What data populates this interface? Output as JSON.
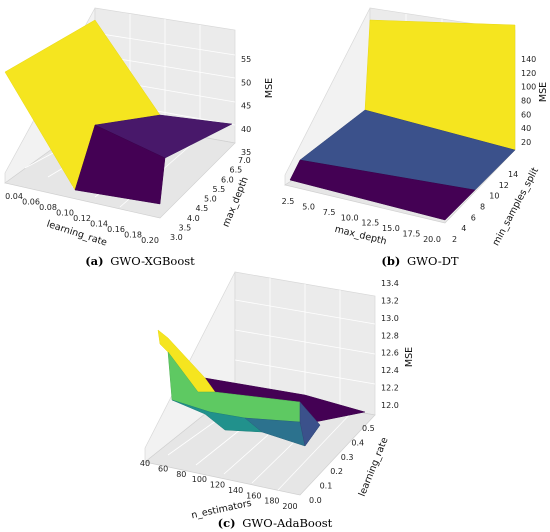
{
  "figure": {
    "chart_data": [
      {
        "type": "surface3d",
        "caption_letter": "(a)",
        "caption_text": "GWO-XGBoost",
        "x_axis": {
          "label": "learning_rate",
          "ticks": [
            "0.04",
            "0.06",
            "0.08",
            "0.10",
            "0.12",
            "0.14",
            "0.16",
            "0.18",
            "0.20"
          ],
          "range": [
            0.04,
            0.2
          ]
        },
        "y_axis": {
          "label": "max_depth",
          "ticks": [
            "3.0",
            "3.5",
            "4.0",
            "4.5",
            "5.0",
            "5.5",
            "6.0",
            "6.5",
            "7.0"
          ],
          "range": [
            3.0,
            7.0
          ]
        },
        "z_axis": {
          "label": "MSE",
          "ticks": [
            "35",
            "40",
            "45",
            "50",
            "55"
          ],
          "range": [
            35,
            57
          ]
        },
        "surface": [
          {
            "x": 0.04,
            "y": 3.0,
            "z": 57
          },
          {
            "x": 0.04,
            "y": 7.0,
            "z": 57
          },
          {
            "x": 0.1,
            "y": 3.0,
            "z": 35
          },
          {
            "x": 0.1,
            "y": 7.0,
            "z": 41
          },
          {
            "x": 0.2,
            "y": 3.0,
            "z": 35
          },
          {
            "x": 0.2,
            "y": 7.0,
            "z": 41
          }
        ],
        "colormap": "viridis",
        "colors": {
          "high": "#f5e51f",
          "low": "#48186a",
          "lowest": "#440154"
        }
      },
      {
        "type": "surface3d",
        "caption_letter": "(b)",
        "caption_text": "GWO-DT",
        "x_axis": {
          "label": "max_depth",
          "ticks": [
            "2.5",
            "5.0",
            "7.5",
            "10.0",
            "12.5",
            "15.0",
            "17.5",
            "20.0"
          ],
          "range": [
            2,
            20
          ]
        },
        "y_axis": {
          "label": "min_samples_split",
          "ticks": [
            "2",
            "4",
            "6",
            "8",
            "10",
            "12",
            "14"
          ],
          "range": [
            2,
            14
          ]
        },
        "z_axis": {
          "label": "MSE",
          "ticks": [
            "20",
            "40",
            "60",
            "80",
            "100",
            "120",
            "140"
          ],
          "range": [
            20,
            150
          ]
        },
        "surface": [
          {
            "x": 2,
            "y": 2,
            "z": 20
          },
          {
            "x": 20,
            "y": 2,
            "z": 20
          },
          {
            "x": 2,
            "y": 5,
            "z": 30
          },
          {
            "x": 20,
            "y": 5,
            "z": 30
          },
          {
            "x": 2,
            "y": 8,
            "z": 75
          },
          {
            "x": 20,
            "y": 8,
            "z": 75
          },
          {
            "x": 2,
            "y": 14,
            "z": 150
          },
          {
            "x": 20,
            "y": 14,
            "z": 150
          }
        ],
        "colormap": "viridis",
        "colors": {
          "high": "#f5e51f",
          "mid": "#3b518b",
          "low": "#440154"
        }
      },
      {
        "type": "surface3d",
        "caption_letter": "(c)",
        "caption_text": "GWO-AdaBoost",
        "x_axis": {
          "label": "n_estimators",
          "ticks": [
            "40",
            "60",
            "80",
            "100",
            "120",
            "140",
            "160",
            "180",
            "200"
          ],
          "range": [
            40,
            200
          ]
        },
        "y_axis": {
          "label": "learning_rate",
          "ticks": [
            "0.0",
            "0.1",
            "0.2",
            "0.3",
            "0.4",
            "0.5"
          ],
          "range": [
            0.0,
            0.5
          ]
        },
        "z_axis": {
          "label": "MSE",
          "ticks": [
            "12.0",
            "12.2",
            "12.4",
            "12.6",
            "12.8",
            "13.0",
            "13.2",
            "13.4"
          ],
          "range": [
            11.9,
            13.5
          ]
        },
        "surface": [
          {
            "x": 40,
            "y": 0.0,
            "z": 13.1
          },
          {
            "x": 40,
            "y": 0.5,
            "z": 13.3
          },
          {
            "x": 60,
            "y": 0.0,
            "z": 12.6
          },
          {
            "x": 60,
            "y": 0.5,
            "z": 12.2
          },
          {
            "x": 100,
            "y": 0.0,
            "z": 12.2
          },
          {
            "x": 100,
            "y": 0.5,
            "z": 12.0
          },
          {
            "x": 160,
            "y": 0.0,
            "z": 12.5
          },
          {
            "x": 160,
            "y": 0.5,
            "z": 11.9
          },
          {
            "x": 200,
            "y": 0.0,
            "z": 11.9
          },
          {
            "x": 200,
            "y": 0.5,
            "z": 11.9
          }
        ],
        "colormap": "viridis",
        "colors": {
          "high": "#f5e51f",
          "green": "#5ec962",
          "teal": "#21918c",
          "blue": "#2c728e",
          "low": "#440154"
        }
      }
    ]
  }
}
